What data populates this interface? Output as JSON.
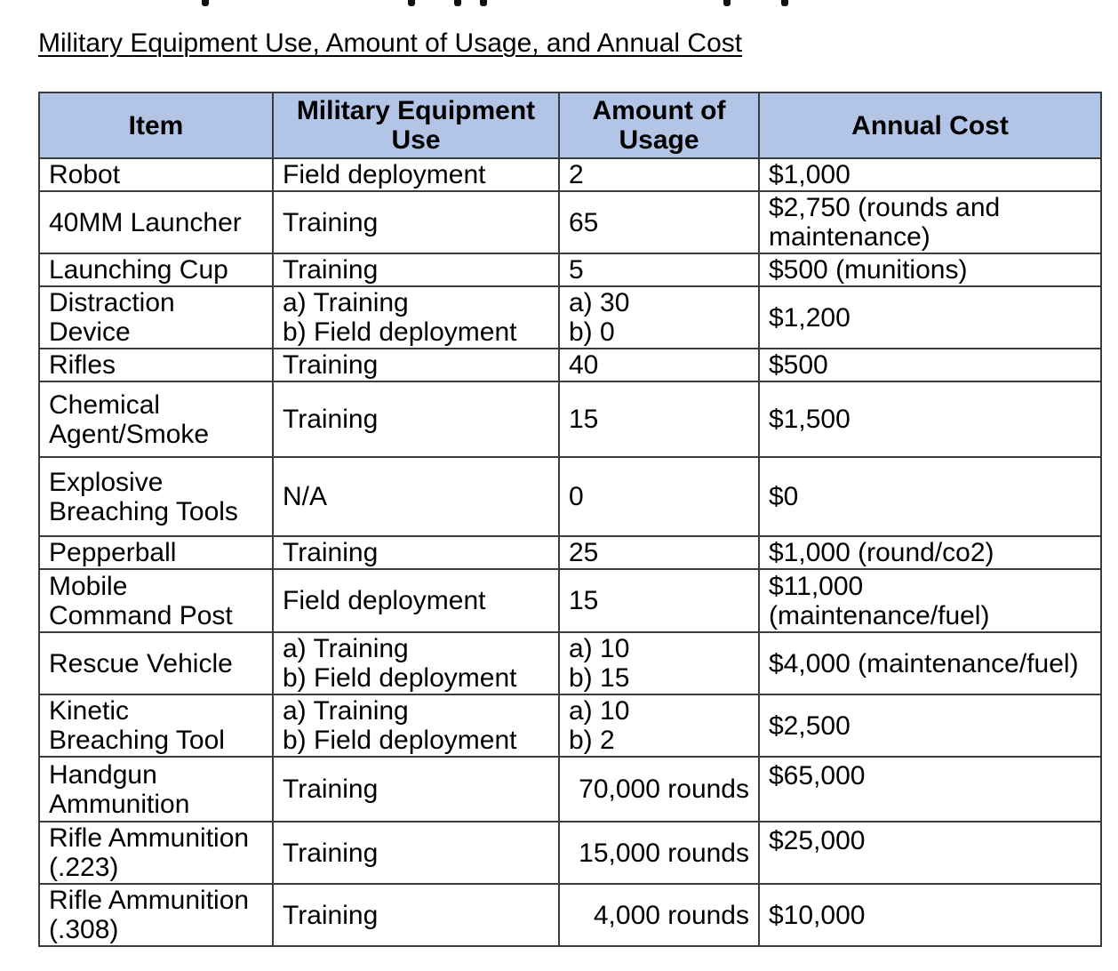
{
  "page": {
    "title": "Military Equipment Use, Amount of Usage, and Annual Cost"
  },
  "colors": {
    "page_bg": "#ffffff",
    "text": "#000000",
    "table_border": "#3c3c3c",
    "header_bg": "#b3c5e7"
  },
  "table": {
    "headers": [
      [
        "Item"
      ],
      [
        "Military Equipment",
        "Use"
      ],
      [
        "Amount of",
        "Usage"
      ],
      [
        "Annual Cost"
      ]
    ],
    "rows": [
      {
        "item": [
          "Robot"
        ],
        "use": [
          "Field deployment"
        ],
        "amount": [
          "2"
        ],
        "cost": [
          "$1,000"
        ]
      },
      {
        "item": [
          "40MM Launcher"
        ],
        "use": [
          "Training"
        ],
        "amount": [
          "65"
        ],
        "cost": [
          "$2,750 (rounds and",
          "maintenance)"
        ]
      },
      {
        "item": [
          "Launching Cup"
        ],
        "use": [
          "Training"
        ],
        "amount": [
          "5"
        ],
        "cost": [
          "$500 (munitions)"
        ]
      },
      {
        "item": [
          "Distraction",
          "Device"
        ],
        "use": [
          "a) Training",
          "b) Field deployment"
        ],
        "amount": [
          "a) 30",
          "b) 0"
        ],
        "cost": [
          "$1,200"
        ]
      },
      {
        "item": [
          "Rifles"
        ],
        "use": [
          "Training"
        ],
        "amount": [
          "40"
        ],
        "cost": [
          "$500"
        ]
      },
      {
        "item": [
          "Chemical",
          "Agent/Smoke"
        ],
        "use": [
          "Training"
        ],
        "amount": [
          "15"
        ],
        "cost": [
          "$1,500"
        ]
      },
      {
        "item": [
          "Explosive",
          "Breaching Tools"
        ],
        "use": [
          "N/A"
        ],
        "amount": [
          "0"
        ],
        "cost": [
          "$0"
        ]
      },
      {
        "item": [
          "Pepperball"
        ],
        "use": [
          "Training"
        ],
        "amount": [
          "25"
        ],
        "cost": [
          "$1,000 (round/co2)"
        ]
      },
      {
        "item": [
          "Mobile",
          "Command Post"
        ],
        "use": [
          "Field deployment"
        ],
        "amount": [
          "15"
        ],
        "cost": [
          "$11,000",
          "(maintenance/fuel)"
        ]
      },
      {
        "item": [
          "Rescue Vehicle"
        ],
        "use": [
          "a) Training",
          "b) Field deployment"
        ],
        "amount": [
          "a) 10",
          "b) 15"
        ],
        "cost": [
          "$4,000 (maintenance/fuel)"
        ]
      },
      {
        "item": [
          "Kinetic",
          "Breaching Tool"
        ],
        "use": [
          "a) Training",
          "b) Field deployment"
        ],
        "amount": [
          "a) 10",
          "b) 2"
        ],
        "cost": [
          "$2,500"
        ]
      },
      {
        "item": [
          "Handgun",
          "Ammunition"
        ],
        "use": [
          "Training"
        ],
        "amount": [
          "70,000 rounds"
        ],
        "amount_align": "right",
        "cost": [
          "$65,000"
        ],
        "cost_valign": "top"
      },
      {
        "item": [
          "Rifle Ammunition",
          "(.223)"
        ],
        "use": [
          "Training"
        ],
        "amount": [
          "15,000 rounds"
        ],
        "amount_align": "right",
        "cost": [
          "$25,000"
        ],
        "cost_valign": "top"
      },
      {
        "item": [
          "Rifle Ammunition",
          "(.308)"
        ],
        "use": [
          "Training"
        ],
        "amount": [
          "4,000 rounds"
        ],
        "amount_align": "right",
        "cost": [
          "$10,000"
        ]
      }
    ]
  }
}
